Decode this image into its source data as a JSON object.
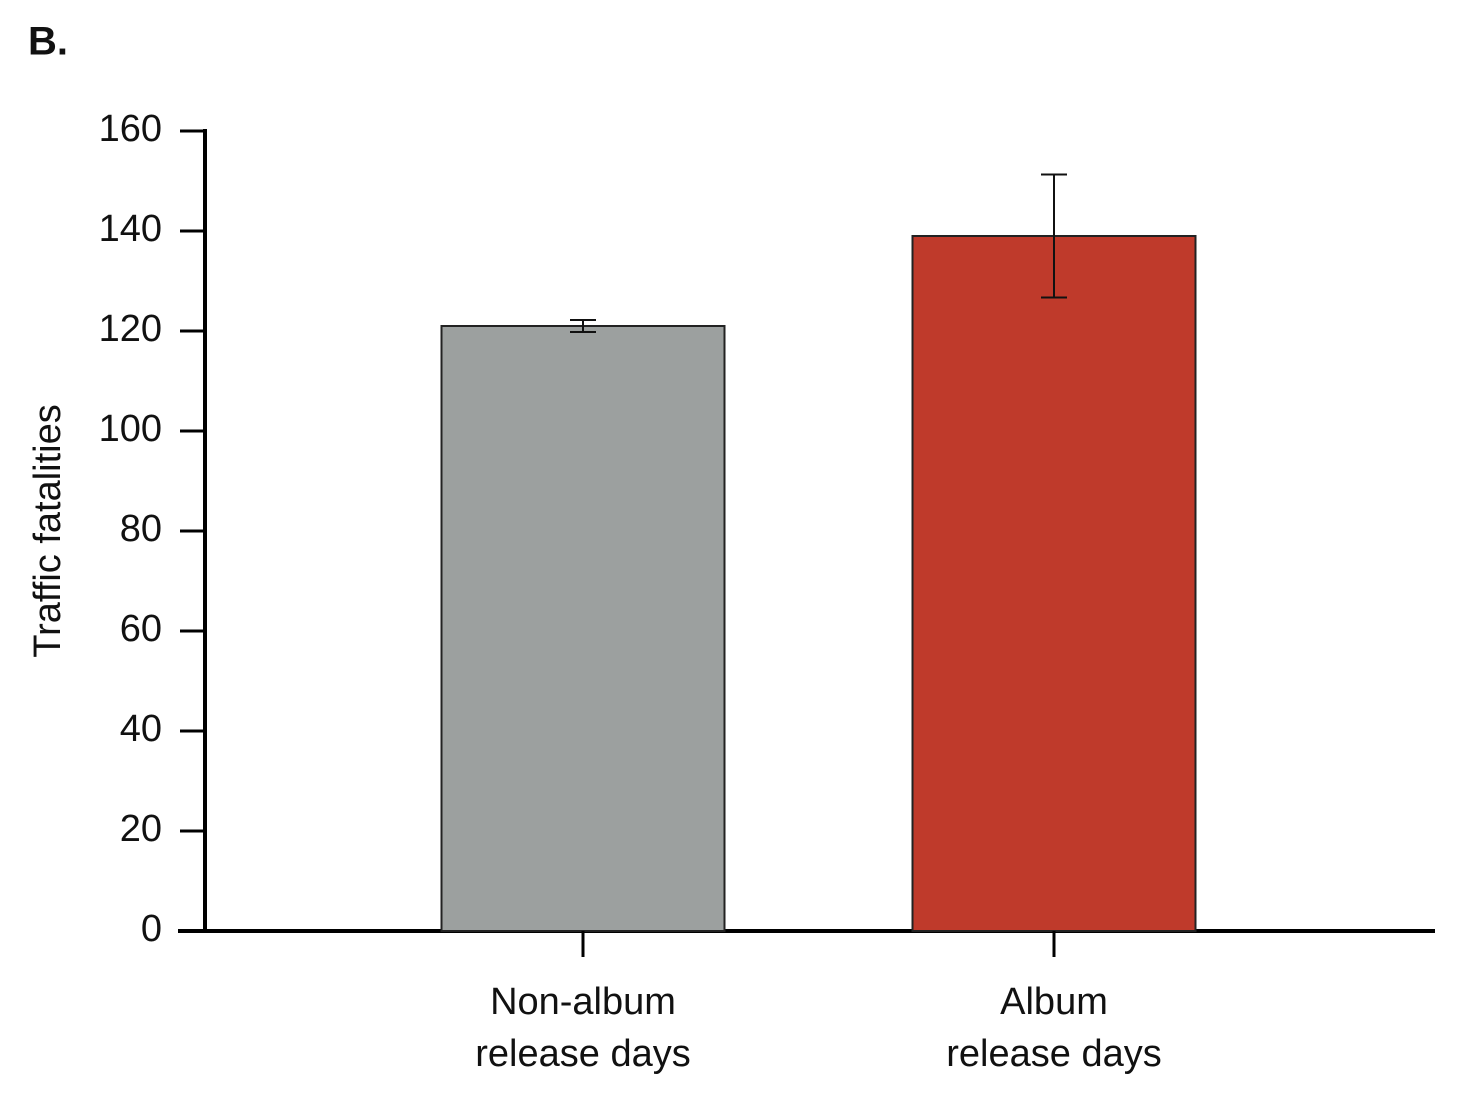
{
  "chart_data": {
    "type": "bar",
    "panel_label": "B.",
    "y_label": "Traffic fatalities",
    "categories": [
      [
        "Non-album",
        "release days"
      ],
      [
        "Album",
        "release days"
      ]
    ],
    "values": [
      121,
      139
    ],
    "errors": [
      1.2,
      12.3
    ],
    "colors": [
      "#9ca09f",
      "#bf3a2b"
    ],
    "ylim": [
      0,
      160
    ],
    "yticks": [
      0,
      20,
      40,
      60,
      80,
      100,
      120,
      140,
      160
    ],
    "grid": false
  }
}
